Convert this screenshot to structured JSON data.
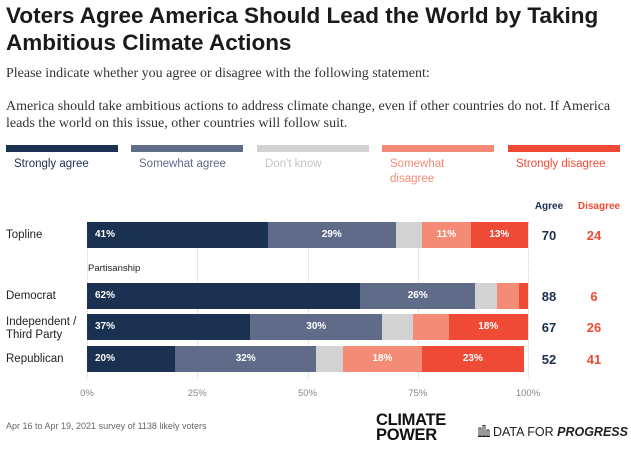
{
  "title": "Voters Agree America Should Lead the World by Taking Ambitious Climate Actions",
  "subtitle": "Please indicate whether you agree or disagree with the following statement:",
  "statement": "America should take ambitious actions to address climate change, even if other countries do not. If America leads the world on this issue, other countries will follow suit.",
  "colors": {
    "strongly_agree": "#1b3152",
    "somewhat_agree": "#5f6b89",
    "dont_know": "#d2d2d2",
    "somewhat_disagree": "#f38b76",
    "strongly_disagree": "#ef4a35"
  },
  "legend": [
    {
      "label": "Strongly agree",
      "color": "#1b3152"
    },
    {
      "label": "Somewhat agree",
      "color": "#5f6b89"
    },
    {
      "label": "Don't know",
      "color": "#d2d2d2"
    },
    {
      "label": "Somewhat disagree",
      "color": "#f38b76"
    },
    {
      "label": "Strongly disagree",
      "color": "#ef4a35"
    }
  ],
  "columns": {
    "agree": "Agree",
    "disagree": "Disagree"
  },
  "group_label": "Partisanship",
  "chart_data": {
    "type": "bar",
    "orientation": "horizontal",
    "stacked": true,
    "categories": [
      "Topline",
      "Democrat",
      "Independent / Third Party",
      "Republican"
    ],
    "series": [
      {
        "name": "Strongly agree",
        "values": [
          41,
          62,
          37,
          20
        ]
      },
      {
        "name": "Somewhat agree",
        "values": [
          29,
          26,
          30,
          32
        ]
      },
      {
        "name": "Don't know",
        "values": [
          6,
          5,
          7,
          6
        ]
      },
      {
        "name": "Somewhat disagree",
        "values": [
          11,
          5,
          8,
          18
        ]
      },
      {
        "name": "Strongly disagree",
        "values": [
          13,
          2,
          18,
          23
        ]
      }
    ],
    "agree_totals": [
      70,
      88,
      67,
      52
    ],
    "disagree_totals": [
      24,
      6,
      26,
      41
    ],
    "xlim": [
      0,
      100
    ],
    "x_ticks": [
      "0%",
      "25%",
      "50%",
      "75%",
      "100%"
    ],
    "legend_position": "top"
  },
  "footer": "Apr 16 to Apr 19, 2021 survey of 1138 likely voters",
  "logos": {
    "climate_power_line1": "CLIMATE",
    "climate_power_line2": "POWER",
    "dfp_prefix": "DATA FOR ",
    "dfp_emphasis": "PROGRESS"
  }
}
